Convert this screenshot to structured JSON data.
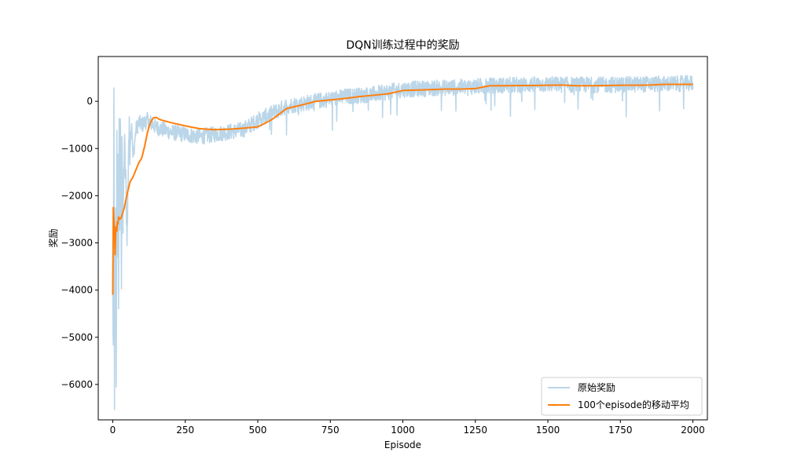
{
  "chart_data": {
    "type": "line",
    "title": "DQN训练过程中的奖励",
    "xlabel": "Episode",
    "ylabel": "奖励",
    "xlim": [
      -50,
      2050
    ],
    "ylim": [
      -6750,
      950
    ],
    "x_ticks": [
      0,
      250,
      500,
      750,
      1000,
      1250,
      1500,
      1750,
      2000
    ],
    "x_tick_labels": [
      "0",
      "250",
      "500",
      "750",
      "1000",
      "1250",
      "1500",
      "1750",
      "2000"
    ],
    "y_ticks": [
      0,
      -1000,
      -2000,
      -3000,
      -4000,
      -5000,
      -6000
    ],
    "y_tick_labels": [
      "0",
      "−1000",
      "−2000",
      "−3000",
      "−4000",
      "−5000",
      "−6000"
    ],
    "grid": false,
    "legend_position": "lower right",
    "series": [
      {
        "name": "原始奖励",
        "color": "#1f77b4",
        "opacity": 0.3,
        "points_per_episode": 1,
        "noise_amplitude": 170,
        "x": [
          0,
          2,
          4,
          6,
          8,
          10,
          12,
          14,
          16,
          18,
          20,
          22,
          24,
          26,
          28,
          30,
          32,
          35,
          40,
          45,
          50,
          55,
          60,
          65,
          70,
          80,
          90,
          100,
          120,
          150,
          200,
          250,
          300,
          350,
          400,
          450,
          500,
          550,
          600,
          700,
          800,
          900,
          1000,
          1100,
          1200,
          1300,
          1400,
          1500,
          1600,
          1700,
          1800,
          1900,
          2000
        ],
        "y": [
          -4100,
          -5300,
          100,
          -6200,
          -4000,
          -2500,
          -6350,
          -700,
          -3000,
          -1500,
          -4000,
          -600,
          -2500,
          -800,
          -1300,
          -4300,
          -400,
          -2800,
          -900,
          -1800,
          -2850,
          -700,
          -900,
          -400,
          -1200,
          -600,
          -450,
          -500,
          -400,
          -550,
          -650,
          -700,
          -750,
          -700,
          -650,
          -600,
          -400,
          -250,
          -100,
          0,
          100,
          150,
          250,
          280,
          300,
          330,
          350,
          360,
          350,
          350,
          360,
          370,
          380
        ]
      },
      {
        "name": "100个episode的移动平均",
        "color": "#ff7f0e",
        "opacity": 1,
        "x": [
          0,
          2,
          4,
          6,
          8,
          10,
          12,
          14,
          16,
          18,
          20,
          25,
          30,
          40,
          50,
          60,
          70,
          80,
          90,
          100,
          110,
          120,
          130,
          140,
          150,
          160,
          170,
          200,
          250,
          300,
          350,
          400,
          450,
          500,
          520,
          550,
          600,
          650,
          700,
          750,
          800,
          850,
          900,
          950,
          1000,
          1050,
          1100,
          1150,
          1200,
          1250,
          1300,
          1350,
          1400,
          1450,
          1500,
          1550,
          1600,
          1650,
          1700,
          1750,
          1800,
          1850,
          1900,
          1950,
          2000
        ],
        "y": [
          -4100,
          -2250,
          -2500,
          -2700,
          -3250,
          -2800,
          -2650,
          -2750,
          -2550,
          -2600,
          -2450,
          -2500,
          -2450,
          -2250,
          -1950,
          -1700,
          -1600,
          -1450,
          -1300,
          -1200,
          -950,
          -650,
          -450,
          -350,
          -340,
          -380,
          -400,
          -450,
          -520,
          -580,
          -600,
          -590,
          -570,
          -540,
          -480,
          -380,
          -150,
          -80,
          0,
          30,
          60,
          100,
          130,
          160,
          230,
          240,
          250,
          260,
          260,
          270,
          330,
          330,
          335,
          335,
          340,
          345,
          330,
          330,
          335,
          340,
          340,
          345,
          360,
          360,
          360
        ]
      }
    ]
  }
}
